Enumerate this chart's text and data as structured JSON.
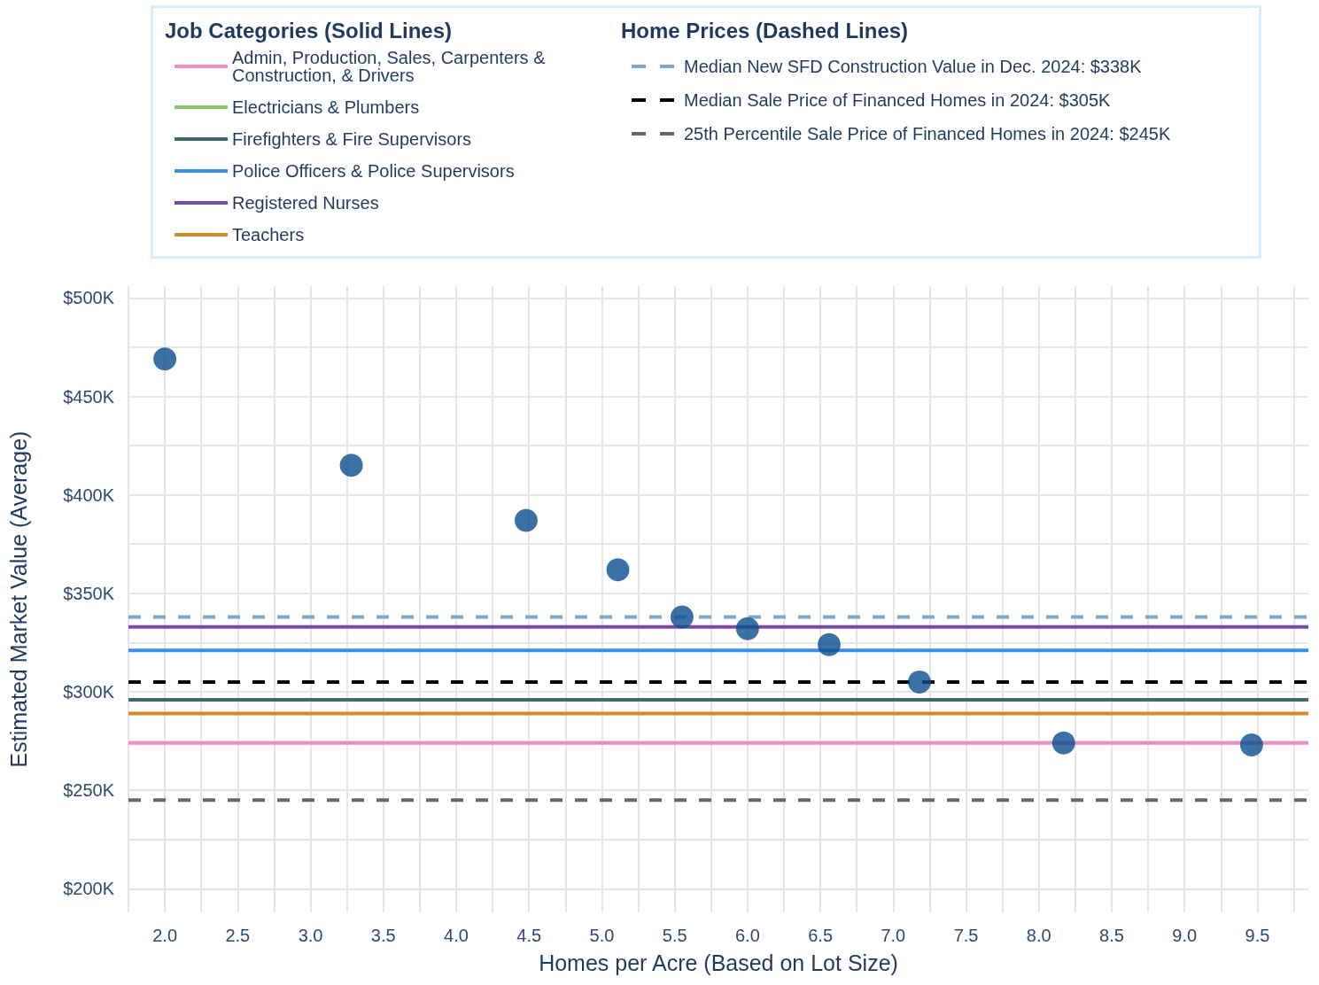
{
  "chart_data": {
    "type": "scatter",
    "xlabel": "Homes per Acre (Based on Lot Size)",
    "ylabel": "Estimated Market Value (Average)",
    "legend_title": [
      "Job Categories (Solid Lines)",
      "Home Prices (Dashed Lines)"
    ],
    "xlim": [
      1.75,
      9.85
    ],
    "ylim": [
      188,
      506
    ],
    "xticks": [
      {
        "value": 1.75,
        "label": null
      },
      {
        "value": 2,
        "label": "2.0"
      },
      {
        "value": 2.25,
        "label": null
      },
      {
        "value": 2.5,
        "label": "2.5"
      },
      {
        "value": 2.75,
        "label": null
      },
      {
        "value": 3,
        "label": "3.0"
      },
      {
        "value": 3.25,
        "label": null
      },
      {
        "value": 3.5,
        "label": "3.5"
      },
      {
        "value": 3.75,
        "label": null
      },
      {
        "value": 4,
        "label": "4.0"
      },
      {
        "value": 4.25,
        "label": null
      },
      {
        "value": 4.5,
        "label": "4.5"
      },
      {
        "value": 4.75,
        "label": null
      },
      {
        "value": 5,
        "label": "5.0"
      },
      {
        "value": 5.25,
        "label": null
      },
      {
        "value": 5.5,
        "label": "5.5"
      },
      {
        "value": 5.75,
        "label": null
      },
      {
        "value": 6,
        "label": "6.0"
      },
      {
        "value": 6.25,
        "label": null
      },
      {
        "value": 6.5,
        "label": "6.5"
      },
      {
        "value": 6.75,
        "label": null
      },
      {
        "value": 7,
        "label": "7.0"
      },
      {
        "value": 7.25,
        "label": null
      },
      {
        "value": 7.5,
        "label": "7.5"
      },
      {
        "value": 7.75,
        "label": null
      },
      {
        "value": 8,
        "label": "8.0"
      },
      {
        "value": 8.25,
        "label": null
      },
      {
        "value": 8.5,
        "label": "8.5"
      },
      {
        "value": 8.75,
        "label": null
      },
      {
        "value": 9,
        "label": "9.0"
      },
      {
        "value": 9.25,
        "label": null
      },
      {
        "value": 9.5,
        "label": "9.5"
      },
      {
        "value": 9.75,
        "label": null
      }
    ],
    "yticks": [
      {
        "value": 200,
        "label": "$200K"
      },
      {
        "value": 225,
        "label": null
      },
      {
        "value": 250,
        "label": "$250K"
      },
      {
        "value": 275,
        "label": null
      },
      {
        "value": 300,
        "label": "$300K"
      },
      {
        "value": 325,
        "label": null
      },
      {
        "value": 350,
        "label": "$350K"
      },
      {
        "value": 375,
        "label": null
      },
      {
        "value": 400,
        "label": "$400K"
      },
      {
        "value": 425,
        "label": null
      },
      {
        "value": 450,
        "label": "$450K"
      },
      {
        "value": 475,
        "label": null
      },
      {
        "value": 500,
        "label": "$500K"
      }
    ],
    "grid": true,
    "legend": "top",
    "marker": "circle",
    "series": [
      {
        "color": "#0b4d8f",
        "x": [
          2.0,
          3.28,
          4.48,
          5.11,
          5.55,
          6.0,
          6.56,
          7.18,
          8.17,
          9.46
        ],
        "values": [
          469,
          415,
          387,
          362,
          338,
          332,
          324,
          305,
          274,
          273
        ]
      },
      {
        "type": "line",
        "name": "Admin, Production, Sales, Carpenters & Construction, & Drivers",
        "color": "#f08cc4",
        "line_style": "solid",
        "marker": "none",
        "x": [
          1.75,
          9.85
        ],
        "values": [
          274,
          274
        ]
      },
      {
        "type": "line",
        "name": "Electricians & Plumbers",
        "color": "#80cc6e",
        "line_style": "solid",
        "marker": "none",
        "values": [
          null,
          null
        ]
      },
      {
        "type": "line",
        "name": "Firefighters & Fire Supervisors",
        "color": "#3d6b6b",
        "line_style": "solid",
        "marker": "none",
        "x": [
          1.75,
          9.85
        ],
        "values": [
          296,
          296
        ]
      },
      {
        "type": "line",
        "name": "Police Officers & Police Supervisors",
        "color": "#3a8ee6",
        "line_style": "solid",
        "marker": "none",
        "x": [
          1.75,
          9.85
        ],
        "values": [
          321,
          321
        ]
      },
      {
        "type": "line",
        "name": "Registered Nurses",
        "color": "#7b4aa8",
        "line_style": "solid",
        "marker": "none",
        "x": [
          1.75,
          9.85
        ],
        "values": [
          333,
          333
        ]
      },
      {
        "type": "line",
        "name": "Teachers",
        "color": "#d4892a",
        "line_style": "solid",
        "marker": "none",
        "x": [
          1.75,
          9.85
        ],
        "values": [
          289,
          289
        ]
      },
      {
        "type": "line",
        "name": "Median New SFD Construction Value in Dec. 2024: $338K",
        "color": "#7fa7c9",
        "line_style": "dashed",
        "marker": "none",
        "x": [
          1.75,
          9.85
        ],
        "values": [
          338,
          338
        ]
      },
      {
        "type": "line",
        "name": "Median Sale Price of Financed Homes in 2024: $305K",
        "color": "#000000",
        "line_style": "dashed",
        "marker": "none",
        "x": [
          1.75,
          9.85
        ],
        "values": [
          305,
          305
        ]
      },
      {
        "type": "line",
        "name": "25th Percentile Sale Price of Financed Homes in 2024: $245K",
        "color": "#5f6873",
        "line_style": "dashed",
        "marker": "none",
        "x": [
          1.75,
          9.85
        ],
        "values": [
          245,
          245
        ]
      }
    ]
  }
}
